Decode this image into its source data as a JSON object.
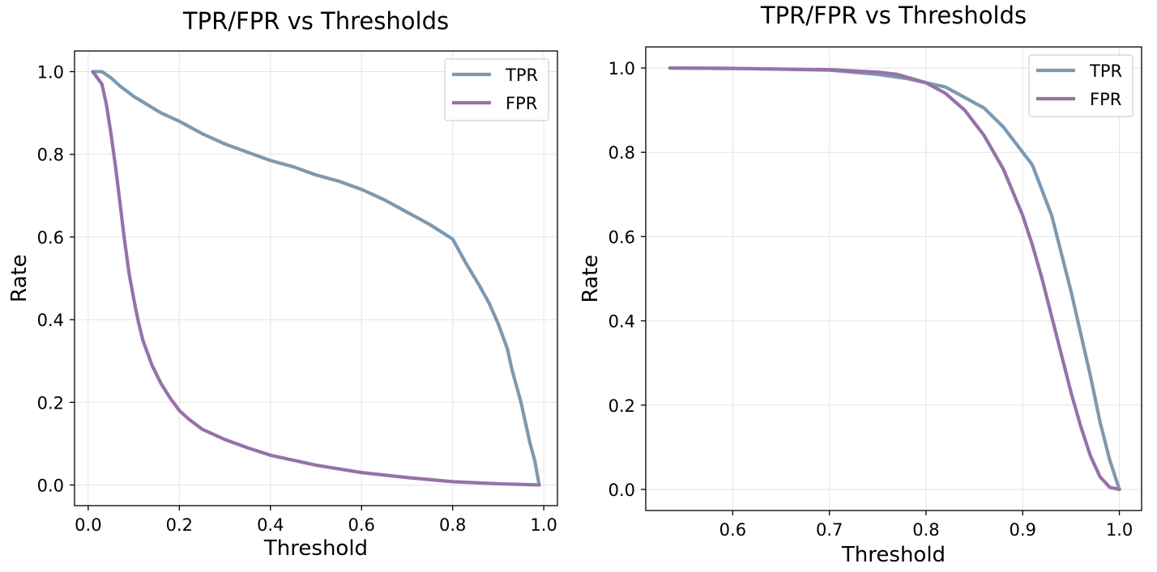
{
  "chart_data": [
    {
      "type": "line",
      "title": "TPR/FPR vs Thresholds",
      "xlabel": "Threshold",
      "ylabel": "Rate",
      "xlim": [
        -0.03,
        1.03
      ],
      "ylim": [
        -0.05,
        1.05
      ],
      "xticks": [
        "0.0",
        "0.2",
        "0.4",
        "0.6",
        "0.8",
        "1.0"
      ],
      "xtick_values": [
        0.0,
        0.2,
        0.4,
        0.6,
        0.8,
        1.0
      ],
      "yticks": [
        "0.0",
        "0.2",
        "0.4",
        "0.6",
        "0.8",
        "1.0"
      ],
      "ytick_values": [
        0.0,
        0.2,
        0.4,
        0.6,
        0.8,
        1.0
      ],
      "grid": true,
      "legend_position": "top-right",
      "series": [
        {
          "name": "TPR",
          "color": "#7d99b0",
          "x": [
            0.01,
            0.03,
            0.05,
            0.07,
            0.1,
            0.13,
            0.16,
            0.2,
            0.25,
            0.3,
            0.35,
            0.4,
            0.45,
            0.5,
            0.55,
            0.6,
            0.65,
            0.7,
            0.75,
            0.8,
            0.83,
            0.86,
            0.88,
            0.9,
            0.92,
            0.93,
            0.95,
            0.97,
            0.98,
            0.99
          ],
          "y": [
            1.0,
            1.0,
            0.985,
            0.965,
            0.94,
            0.92,
            0.9,
            0.88,
            0.85,
            0.825,
            0.805,
            0.785,
            0.77,
            0.75,
            0.735,
            0.715,
            0.69,
            0.66,
            0.63,
            0.595,
            0.535,
            0.48,
            0.44,
            0.39,
            0.33,
            0.28,
            0.2,
            0.1,
            0.06,
            0.0
          ]
        },
        {
          "name": "FPR",
          "color": "#9672a8",
          "x": [
            0.01,
            0.03,
            0.04,
            0.05,
            0.06,
            0.07,
            0.08,
            0.09,
            0.1,
            0.11,
            0.12,
            0.14,
            0.16,
            0.18,
            0.2,
            0.22,
            0.25,
            0.3,
            0.35,
            0.4,
            0.45,
            0.5,
            0.6,
            0.7,
            0.8,
            0.9,
            0.99
          ],
          "y": [
            1.0,
            0.97,
            0.92,
            0.85,
            0.77,
            0.68,
            0.59,
            0.51,
            0.45,
            0.395,
            0.35,
            0.29,
            0.245,
            0.21,
            0.18,
            0.16,
            0.135,
            0.11,
            0.09,
            0.072,
            0.06,
            0.048,
            0.03,
            0.018,
            0.008,
            0.003,
            0.0
          ]
        }
      ]
    },
    {
      "type": "line",
      "title": "TPR/FPR vs Thresholds",
      "xlabel": "Threshold",
      "ylabel": "Rate",
      "xlim": [
        0.51,
        1.023
      ],
      "ylim": [
        -0.05,
        1.05
      ],
      "xticks": [
        "0.6",
        "0.7",
        "0.8",
        "0.9",
        "1.0"
      ],
      "xtick_values": [
        0.6,
        0.7,
        0.8,
        0.9,
        1.0
      ],
      "yticks": [
        "0.0",
        "0.2",
        "0.4",
        "0.6",
        "0.8",
        "1.0"
      ],
      "ytick_values": [
        0.0,
        0.2,
        0.4,
        0.6,
        0.8,
        1.0
      ],
      "grid": true,
      "legend_position": "top-right",
      "series": [
        {
          "name": "TPR",
          "color": "#7d99b0",
          "x": [
            0.535,
            0.6,
            0.7,
            0.75,
            0.78,
            0.8,
            0.82,
            0.84,
            0.86,
            0.88,
            0.9,
            0.91,
            0.92,
            0.93,
            0.94,
            0.95,
            0.96,
            0.97,
            0.98,
            0.99,
            1.0
          ],
          "y": [
            1.0,
            0.999,
            0.995,
            0.985,
            0.975,
            0.965,
            0.955,
            0.93,
            0.905,
            0.86,
            0.8,
            0.77,
            0.71,
            0.65,
            0.56,
            0.47,
            0.37,
            0.27,
            0.16,
            0.07,
            0.0
          ]
        },
        {
          "name": "FPR",
          "color": "#9672a8",
          "x": [
            0.535,
            0.6,
            0.7,
            0.75,
            0.77,
            0.8,
            0.82,
            0.84,
            0.86,
            0.88,
            0.9,
            0.91,
            0.92,
            0.93,
            0.94,
            0.95,
            0.96,
            0.97,
            0.98,
            0.99,
            1.0
          ],
          "y": [
            1.0,
            0.999,
            0.996,
            0.99,
            0.985,
            0.965,
            0.94,
            0.9,
            0.84,
            0.76,
            0.65,
            0.58,
            0.5,
            0.41,
            0.32,
            0.23,
            0.15,
            0.08,
            0.03,
            0.005,
            0.0
          ]
        }
      ]
    }
  ]
}
